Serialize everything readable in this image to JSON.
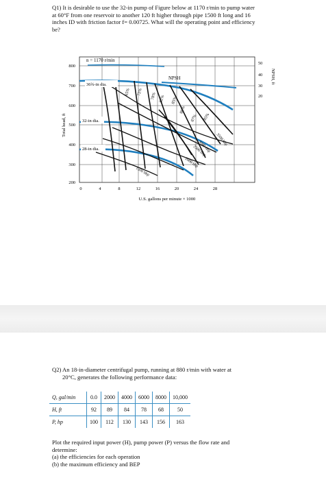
{
  "q1": {
    "lines": [
      "Q1) It is desirable to use the 32-in pump of Figure below at 1170 r/min to pump water",
      "at 60°F from one reservoir to another 120 ft higher through pipe 1500 ft long and 16",
      "inches ID with friction factor f= 0.00725. What will the operating point and efficiency",
      "be?"
    ]
  },
  "figure": {
    "speed_label": "n = 1170 r/min",
    "y_axis_label": "Total head, ft",
    "y_ticks": [
      "800",
      "700",
      "600",
      "500",
      "400",
      "300",
      "200"
    ],
    "x_axis_label": "U.S. gallons per minute × 1000",
    "x_ticks": [
      "0",
      "4",
      "8",
      "12",
      "16",
      "20",
      "24",
      "28"
    ],
    "npsh_axis_label": "NPSH, ft",
    "npsh_ticks": [
      "50",
      "40",
      "30",
      "20"
    ],
    "npsh_curve_label": "NPSH",
    "impeller_labels": [
      "36¾-in dia.",
      "32-in dia.",
      "28-in dia."
    ],
    "efficiency_labels": [
      "65%",
      "72%",
      "78%",
      "82%",
      "85%",
      "86%",
      "87%",
      "85%"
    ],
    "power_labels": [
      "3500 bhp",
      "3000 bhp",
      "2500 bhp",
      "2000 bhp",
      "1500 bhp"
    ]
  },
  "q2": {
    "line1": "Q2) An 18-in-diameter centrifugal pump, running at 880 r/min with water at",
    "line2": "20°C, generates the following performance data:"
  },
  "table": {
    "rows": [
      {
        "label": "Q, gal/min",
        "values": [
          "0.0",
          "2000",
          "4000",
          "6000",
          "8000",
          "10,000"
        ]
      },
      {
        "label": "H, ft",
        "values": [
          "92",
          "89",
          "84",
          "78",
          "68",
          "50"
        ]
      },
      {
        "label": "P, hp",
        "values": [
          "100",
          "112",
          "130",
          "143",
          "156",
          "163"
        ]
      }
    ]
  },
  "instructions": {
    "line1": "Plot the required input power (H), pump power (P) versus the flow rate and",
    "line2": "determine:",
    "part_a": "(a) the efficiencies for each operation",
    "part_b": "(b) the maximum efficiency and BEP"
  }
}
